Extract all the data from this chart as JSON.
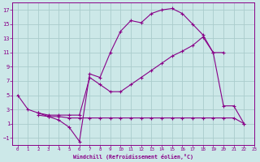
{
  "xlabel": "Windchill (Refroidissement éolien,°C)",
  "bg_color": "#cce8e8",
  "grid_color": "#aacccc",
  "line_color": "#880088",
  "line1_x": [
    0,
    1,
    2,
    3,
    4,
    5,
    6,
    7,
    8,
    9,
    10,
    11,
    12,
    13,
    14,
    15,
    16,
    17,
    18,
    19,
    20,
    21,
    22
  ],
  "line1_y": [
    5,
    3,
    2.5,
    2,
    1.5,
    0.5,
    -1.5,
    8,
    7.5,
    11,
    14,
    15.5,
    15.2,
    16.5,
    17,
    17.2,
    16.5,
    15,
    13.5,
    11,
    3.5,
    3.5,
    1
  ],
  "line2_x": [
    2,
    3,
    4,
    5,
    6,
    7,
    8,
    9,
    10,
    11,
    12,
    13,
    14,
    15,
    16,
    17,
    18,
    19,
    20
  ],
  "line2_y": [
    2.5,
    2.2,
    2.2,
    2.2,
    2.2,
    7.5,
    6.5,
    5.5,
    5.5,
    6.5,
    7.5,
    8.5,
    9.5,
    10.5,
    11.2,
    12,
    13.2,
    11,
    11
  ],
  "line3_x": [
    2,
    3,
    4,
    5,
    6,
    7,
    8,
    9,
    10,
    11,
    12,
    13,
    14,
    15,
    16,
    17,
    18,
    19,
    20,
    21,
    22
  ],
  "line3_y": [
    2.2,
    2.0,
    2.0,
    1.8,
    1.8,
    1.8,
    1.8,
    1.8,
    1.8,
    1.8,
    1.8,
    1.8,
    1.8,
    1.8,
    1.8,
    1.8,
    1.8,
    1.8,
    1.8,
    1.8,
    1.0
  ],
  "xlim": [
    -0.5,
    23
  ],
  "ylim": [
    -2,
    18
  ],
  "xticks": [
    0,
    1,
    2,
    3,
    4,
    5,
    6,
    7,
    8,
    9,
    10,
    11,
    12,
    13,
    14,
    15,
    16,
    17,
    18,
    19,
    20,
    21,
    22,
    23
  ],
  "yticks": [
    -1,
    1,
    3,
    5,
    7,
    9,
    11,
    13,
    15,
    17
  ]
}
